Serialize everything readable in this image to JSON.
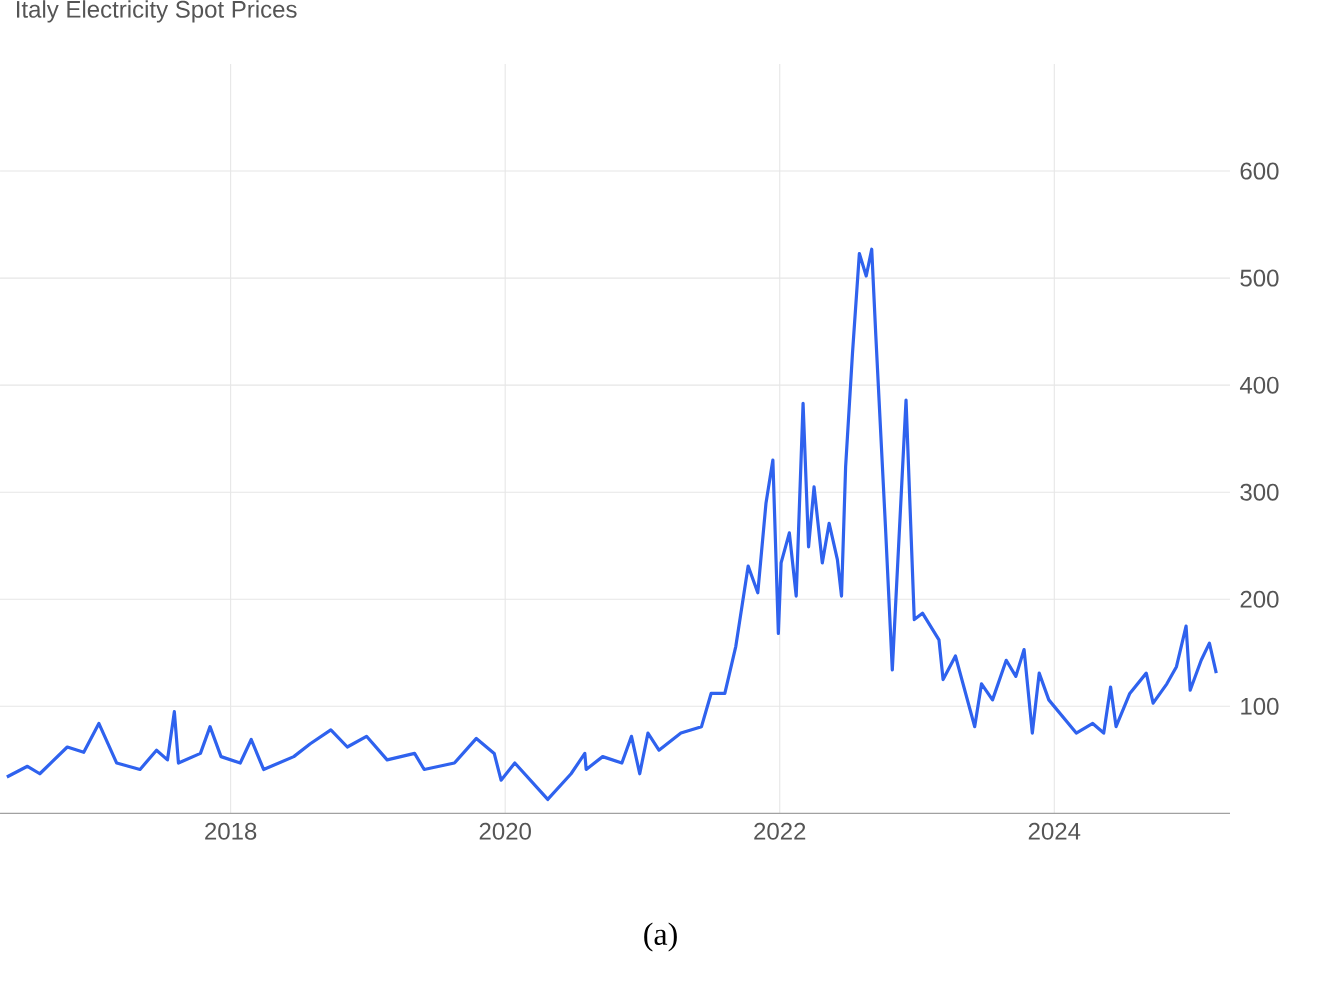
{
  "chart_data": {
    "type": "line",
    "title": "Italy Electricity Spot Prices",
    "annotations": [
      "(a)"
    ],
    "x": [
      2016.37,
      2016.52,
      2016.61,
      2016.81,
      2016.93,
      2017.04,
      2017.17,
      2017.34,
      2017.46,
      2017.54,
      2017.59,
      2017.62,
      2017.78,
      2017.85,
      2017.93,
      2018.07,
      2018.15,
      2018.24,
      2018.46,
      2018.58,
      2018.73,
      2018.85,
      2018.99,
      2019.14,
      2019.34,
      2019.41,
      2019.63,
      2019.79,
      2019.92,
      2019.97,
      2020.07,
      2020.31,
      2020.48,
      2020.58,
      2020.59,
      2020.71,
      2020.85,
      2020.92,
      2020.98,
      2021.04,
      2021.12,
      2021.28,
      2021.43,
      2021.5,
      2021.6,
      2021.68,
      2021.77,
      2021.84,
      2021.9,
      2021.95,
      2021.99,
      2022.01,
      2022.07,
      2022.12,
      2022.17,
      2022.21,
      2022.25,
      2022.31,
      2022.36,
      2022.42,
      2022.45,
      2022.48,
      2022.53,
      2022.58,
      2022.63,
      2022.67,
      2022.7,
      2022.77,
      2022.82,
      2022.92,
      2022.98,
      2023.04,
      2023.16,
      2023.19,
      2023.28,
      2023.42,
      2023.47,
      2023.55,
      2023.65,
      2023.72,
      2023.78,
      2023.84,
      2023.89,
      2023.96,
      2024.16,
      2024.28,
      2024.36,
      2024.41,
      2024.45,
      2024.55,
      2024.67,
      2024.72,
      2024.82,
      2024.89,
      2024.96,
      2024.99,
      2025.07,
      2025.13,
      2025.18
    ],
    "series": [
      {
        "color": "#2f62ee",
        "values": [
          34,
          44,
          37,
          62,
          57,
          84,
          47,
          41,
          59,
          50,
          95,
          47,
          56,
          81,
          53,
          47,
          69,
          41,
          53,
          65,
          78,
          62,
          72,
          50,
          56,
          41,
          47,
          70,
          56,
          31,
          47,
          13,
          37,
          56,
          41,
          53,
          47,
          72,
          37,
          75,
          59,
          75,
          81,
          112,
          112,
          156,
          231,
          206,
          290,
          330,
          168,
          234,
          262,
          203,
          383,
          249,
          305,
          234,
          271,
          237,
          203,
          324,
          430,
          523,
          502,
          527,
          446,
          268,
          134,
          386,
          181,
          187,
          162,
          125,
          147,
          81,
          121,
          106,
          143,
          128,
          153,
          75,
          131,
          106,
          75,
          84,
          75,
          118,
          81,
          112,
          131,
          103,
          121,
          137,
          175,
          115,
          143,
          159,
          131
        ]
      }
    ],
    "xlim": [
      2016.32,
      2025.28
    ],
    "ylim": [
      0,
      700
    ],
    "xticks": [
      2018,
      2020,
      2022,
      2024
    ],
    "yticks": [
      100,
      200,
      300,
      400,
      500,
      600
    ],
    "grid": true,
    "line_style": "solid",
    "marker": "none"
  }
}
